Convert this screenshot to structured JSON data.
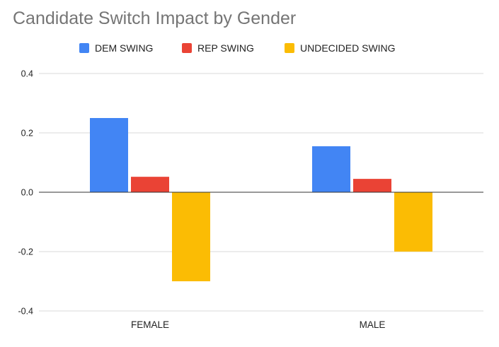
{
  "chart_data": {
    "type": "bar",
    "title": "Candidate Switch Impact by Gender",
    "xlabel": "",
    "ylabel": "",
    "categories": [
      "FEMALE",
      "MALE"
    ],
    "series": [
      {
        "name": "DEM SWING",
        "color": "#4285f4",
        "values": [
          0.25,
          0.155
        ]
      },
      {
        "name": "REP SWING",
        "color": "#ea4335",
        "values": [
          0.052,
          0.045
        ]
      },
      {
        "name": "UNDECIDED SWING",
        "color": "#fbbc04",
        "values": [
          -0.3,
          -0.2
        ]
      }
    ],
    "ylim": [
      -0.4,
      0.4
    ],
    "yticks": [
      "0.4",
      "0.2",
      "0.0",
      "-0.2",
      "-0.4"
    ],
    "grid": true,
    "legend_position": "top"
  }
}
